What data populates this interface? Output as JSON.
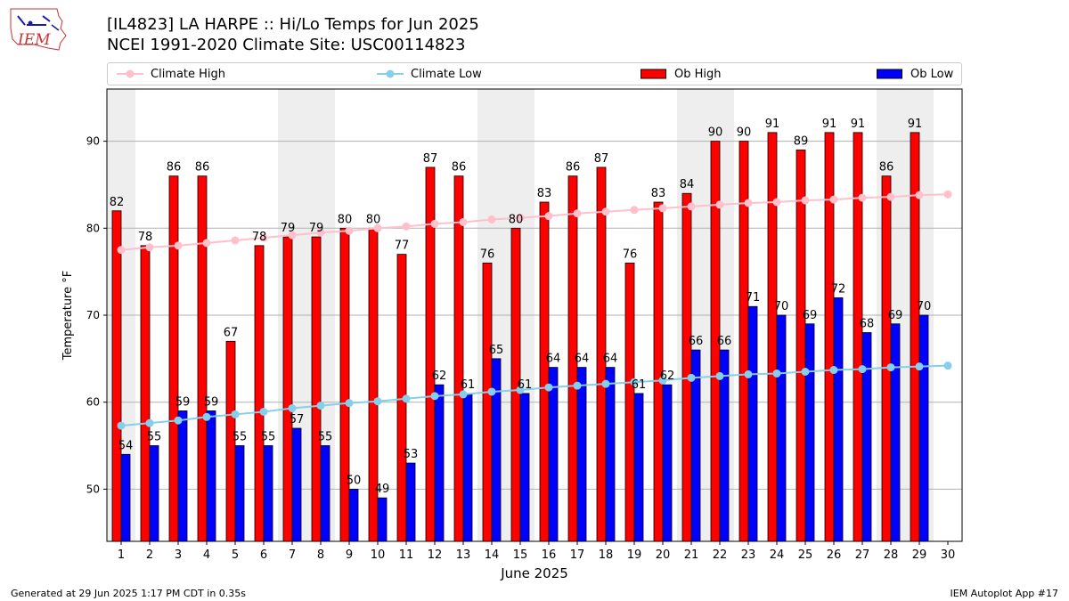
{
  "header": {
    "title": "[IL4823] LA HARPE :: Hi/Lo Temps for Jun 2025",
    "subtitle": "NCEI 1991-2020 Climate Site: USC00114823",
    "logo_text": "IEM"
  },
  "legend": {
    "climate_high": "Climate High",
    "climate_low": "Climate Low",
    "ob_high": "Ob High",
    "ob_low": "Ob Low"
  },
  "footer": {
    "left": "Generated at 29 Jun 2025 1:17 PM CDT in 0.35s",
    "right": "IEM Autoplot App #17"
  },
  "colors": {
    "ob_high": "#ff0000",
    "ob_low": "#0000ff",
    "climate_high": "#ffc0cb",
    "climate_low": "#87ceeb",
    "weekend_band": "#eeeeee",
    "grid": "#b0b0b0"
  },
  "chart_data": {
    "type": "bar",
    "xlabel": "June 2025",
    "ylabel": "Temperature °F",
    "ylim": [
      44,
      96
    ],
    "yticks": [
      50,
      60,
      70,
      80,
      90
    ],
    "grid": "horizontal",
    "legend_position": "top",
    "categories": [
      1,
      2,
      3,
      4,
      5,
      6,
      7,
      8,
      9,
      10,
      11,
      12,
      13,
      14,
      15,
      16,
      17,
      18,
      19,
      20,
      21,
      22,
      23,
      24,
      25,
      26,
      27,
      28,
      29,
      30
    ],
    "weekend_days": [
      1,
      7,
      8,
      14,
      15,
      21,
      22,
      28,
      29
    ],
    "series": [
      {
        "name": "Ob High",
        "type": "bar",
        "values": [
          82,
          78,
          86,
          86,
          67,
          78,
          79,
          79,
          80,
          80,
          77,
          87,
          86,
          76,
          80,
          83,
          86,
          87,
          76,
          83,
          84,
          90,
          90,
          91,
          89,
          91,
          91,
          86,
          91,
          null
        ]
      },
      {
        "name": "Ob Low",
        "type": "bar",
        "values": [
          54,
          55,
          59,
          59,
          55,
          55,
          57,
          55,
          50,
          49,
          53,
          62,
          61,
          65,
          61,
          64,
          64,
          64,
          61,
          62,
          66,
          66,
          71,
          70,
          69,
          72,
          68,
          69,
          70,
          null
        ]
      },
      {
        "name": "Climate High",
        "type": "line",
        "values": [
          77.5,
          77.8,
          78.0,
          78.3,
          78.6,
          78.9,
          79.2,
          79.5,
          79.7,
          80.0,
          80.2,
          80.5,
          80.7,
          81.0,
          81.2,
          81.4,
          81.7,
          81.9,
          82.1,
          82.3,
          82.5,
          82.7,
          82.9,
          83.0,
          83.2,
          83.3,
          83.5,
          83.6,
          83.8,
          83.9
        ]
      },
      {
        "name": "Climate Low",
        "type": "line",
        "values": [
          57.3,
          57.6,
          57.9,
          58.3,
          58.6,
          58.9,
          59.3,
          59.6,
          59.9,
          60.1,
          60.4,
          60.7,
          60.9,
          61.2,
          61.4,
          61.7,
          61.9,
          62.1,
          62.3,
          62.5,
          62.8,
          63.0,
          63.2,
          63.3,
          63.5,
          63.7,
          63.8,
          64.0,
          64.1,
          64.2
        ]
      }
    ]
  }
}
